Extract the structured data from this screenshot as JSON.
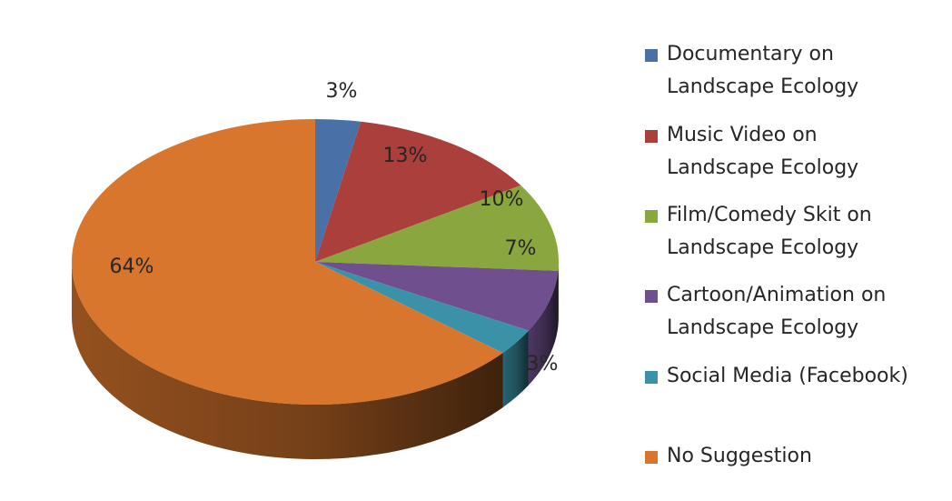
{
  "chart_data": {
    "type": "pie",
    "title": "",
    "legend_position": "right",
    "slices": [
      {
        "name": "Documentary on\nLandscape Ecology",
        "value": 3,
        "label": "3%",
        "color": "#4A70A8"
      },
      {
        "name": "Music Video on\nLandscape Ecology",
        "value": 13,
        "label": "13%",
        "color": "#AA3F3C"
      },
      {
        "name": "Film/Comedy Skit on\nLandscape Ecology",
        "value": 10,
        "label": "10%",
        "color": "#8AA63F"
      },
      {
        "name": "Cartoon/Animation on\nLandscape Ecology",
        "value": 7,
        "label": "7%",
        "color": "#6F4F8E"
      },
      {
        "name": "Social Media (Facebook)",
        "value": 3,
        "label": "3%",
        "color": "#3B92A8"
      },
      {
        "name": "No Suggestion",
        "value": 64,
        "label": "64%",
        "color": "#D8762D"
      }
    ]
  }
}
